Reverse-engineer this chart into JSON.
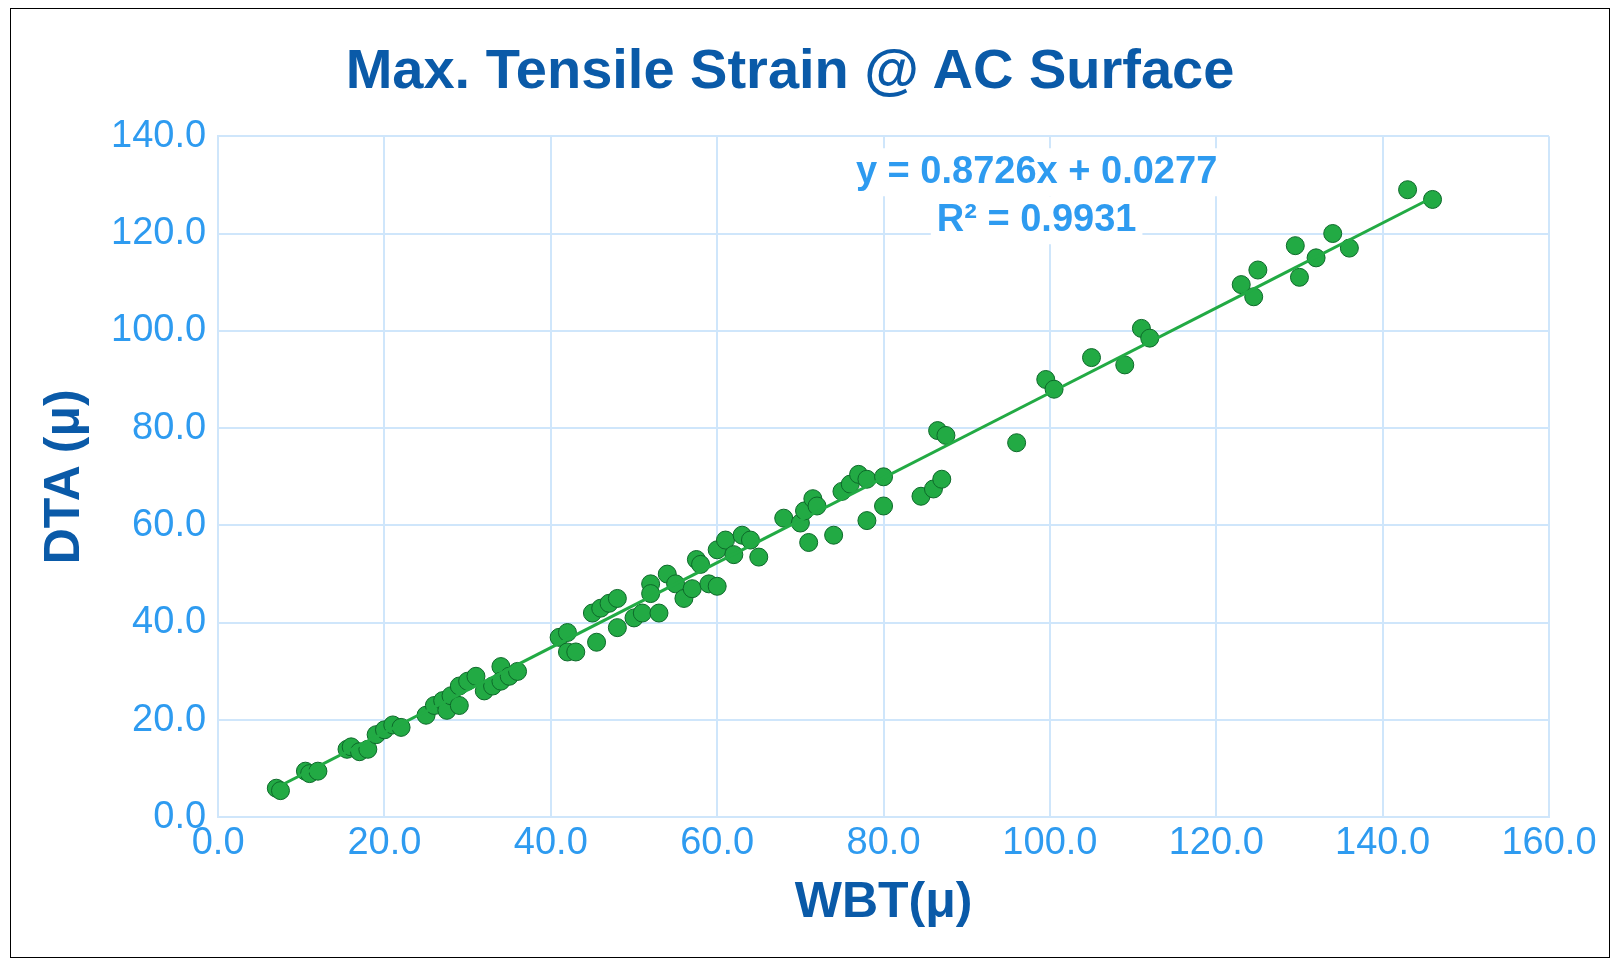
{
  "chart_data": {
    "type": "scatter",
    "title": "Max. Tensile Strain @ AC Surface",
    "xlabel": "WBT(μ)",
    "ylabel": "DTA (μ)",
    "xlim": [
      0,
      160
    ],
    "xticks": [
      {
        "value": 0,
        "label": "0.0"
      },
      {
        "value": 20,
        "label": "20.0"
      },
      {
        "value": 40,
        "label": "40.0"
      },
      {
        "value": 60,
        "label": "60.0"
      },
      {
        "value": 80,
        "label": "80.0"
      },
      {
        "value": 100,
        "label": "100.0"
      },
      {
        "value": 120,
        "label": "120.0"
      },
      {
        "value": 140,
        "label": "140.0"
      },
      {
        "value": 160,
        "label": "160.0"
      }
    ],
    "ylim": [
      0,
      140
    ],
    "yticks": [
      {
        "value": 0,
        "label": "0.0"
      },
      {
        "value": 20,
        "label": "20.0"
      },
      {
        "value": 40,
        "label": "40.0"
      },
      {
        "value": 60,
        "label": "60.0"
      },
      {
        "value": 80,
        "label": "80.0"
      },
      {
        "value": 100,
        "label": "100.0"
      },
      {
        "value": 120,
        "label": "120.0"
      },
      {
        "value": 140,
        "label": "140.0"
      }
    ],
    "grid": true,
    "legend": false,
    "marker": "circle",
    "annotations": [
      "y = 0.8726x + 0.0277",
      "R² = 0.9931"
    ],
    "series": [
      {
        "color": "#22aa44",
        "x": [
          7,
          7.5,
          10.5,
          11,
          12,
          15.5,
          16,
          17,
          18,
          19,
          20,
          21,
          22,
          25,
          26,
          27,
          27.5,
          28,
          29,
          29,
          30,
          31,
          32,
          33,
          34,
          34,
          35,
          36,
          41,
          42,
          42,
          43,
          45,
          45.5,
          46,
          47,
          48,
          48,
          50,
          51,
          52,
          52,
          53,
          54,
          55,
          56,
          57,
          57.5,
          58,
          59,
          60,
          60,
          61,
          62,
          63,
          64,
          65,
          68,
          70,
          70.5,
          71,
          71.5,
          72,
          74,
          75,
          76,
          77,
          78,
          78,
          80,
          80,
          84.5,
          86,
          86.5,
          87,
          87.5,
          96,
          99.5,
          100.5,
          105,
          109,
          111,
          112,
          123,
          124.5,
          125,
          129.5,
          130,
          132,
          134,
          136,
          143,
          146
        ],
        "values": [
          6,
          5.5,
          9.5,
          9,
          9.5,
          14,
          14.5,
          13.5,
          14,
          17,
          18,
          19,
          18.5,
          21,
          23,
          24,
          22,
          25,
          23,
          27,
          28,
          29,
          26,
          27,
          31,
          28,
          29,
          30,
          37,
          38,
          34,
          34,
          42,
          36,
          43,
          44,
          45,
          39,
          41,
          42,
          48,
          46,
          42,
          50,
          48,
          45,
          47,
          53,
          52,
          48,
          55,
          47.5,
          57,
          54,
          58,
          57,
          53.5,
          61.5,
          60.5,
          63,
          56.5,
          65.5,
          64,
          58,
          67,
          68.5,
          70.5,
          69.5,
          61,
          70,
          64,
          66,
          67.5,
          79.5,
          69.5,
          78.5,
          77,
          90,
          88,
          94.5,
          93,
          100.5,
          98.5,
          109.5,
          107,
          112.5,
          117.5,
          111,
          115,
          120,
          117,
          129,
          127
        ]
      },
      {
        "type": "line",
        "color": "#22aa44",
        "marker": "none",
        "line_style": "solid",
        "x": [
          7,
          146
        ],
        "values": [
          6.1,
          127.4
        ]
      }
    ]
  }
}
